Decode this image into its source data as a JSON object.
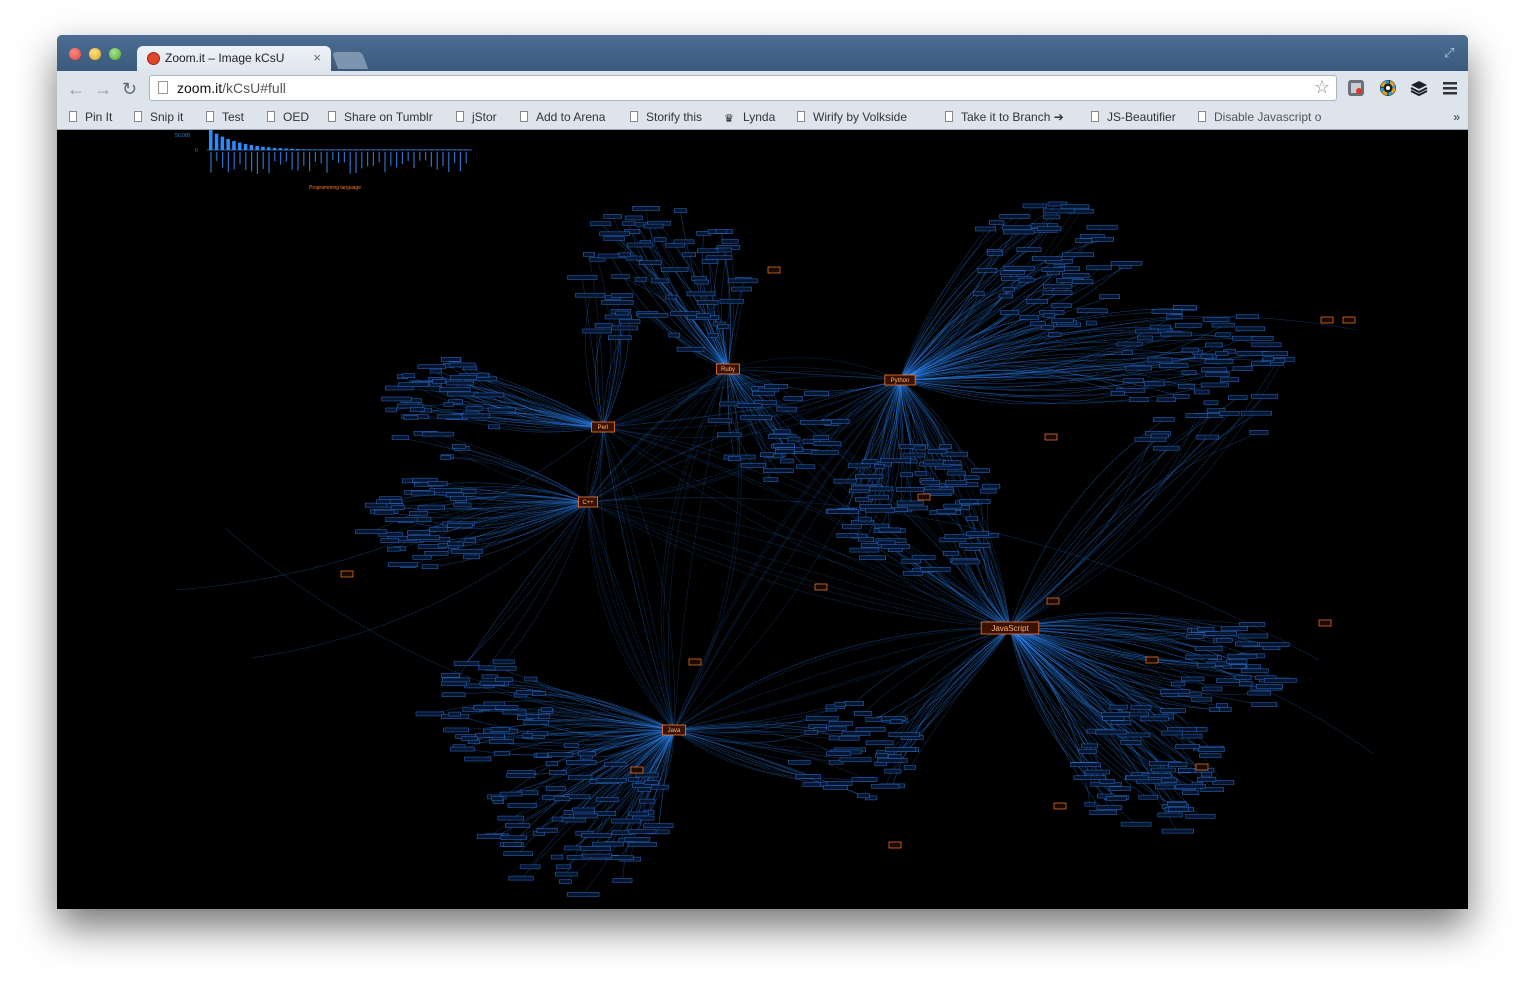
{
  "window": {
    "tab_title": "Zoom.it – Image kCsU",
    "tab_close": "×",
    "url_host": "zoom.it",
    "url_path": "/kCsU#full"
  },
  "nav": {
    "back_icon": "arrow-left-icon",
    "forward_icon": "arrow-right-icon",
    "reload_icon": "reload-icon"
  },
  "bookmarks": [
    {
      "label": "Pin It"
    },
    {
      "label": "Snip it"
    },
    {
      "label": "Test"
    },
    {
      "label": "OED"
    },
    {
      "label": "Share on Tumblr"
    },
    {
      "label": "jStor"
    },
    {
      "label": "Add to Arena"
    },
    {
      "label": "Storify this"
    },
    {
      "label": "Lynda"
    },
    {
      "label": "Wirify by Volkside"
    },
    {
      "label": "Take it to Branch ➔"
    },
    {
      "label": "JS-Beautifier"
    },
    {
      "label": "Disable Javascript o"
    }
  ],
  "bookmarks_more": "»",
  "graph": {
    "hub_labels": [
      "Ruby",
      "Python",
      "JavaScript",
      "Java",
      "C++",
      "Perl"
    ],
    "accent_color": "#ff7a2a",
    "edge_color": "#2e8bff"
  },
  "inset_chart": {
    "ytick": "50,000",
    "ytick0": "0",
    "xlabel": "Programming language"
  }
}
